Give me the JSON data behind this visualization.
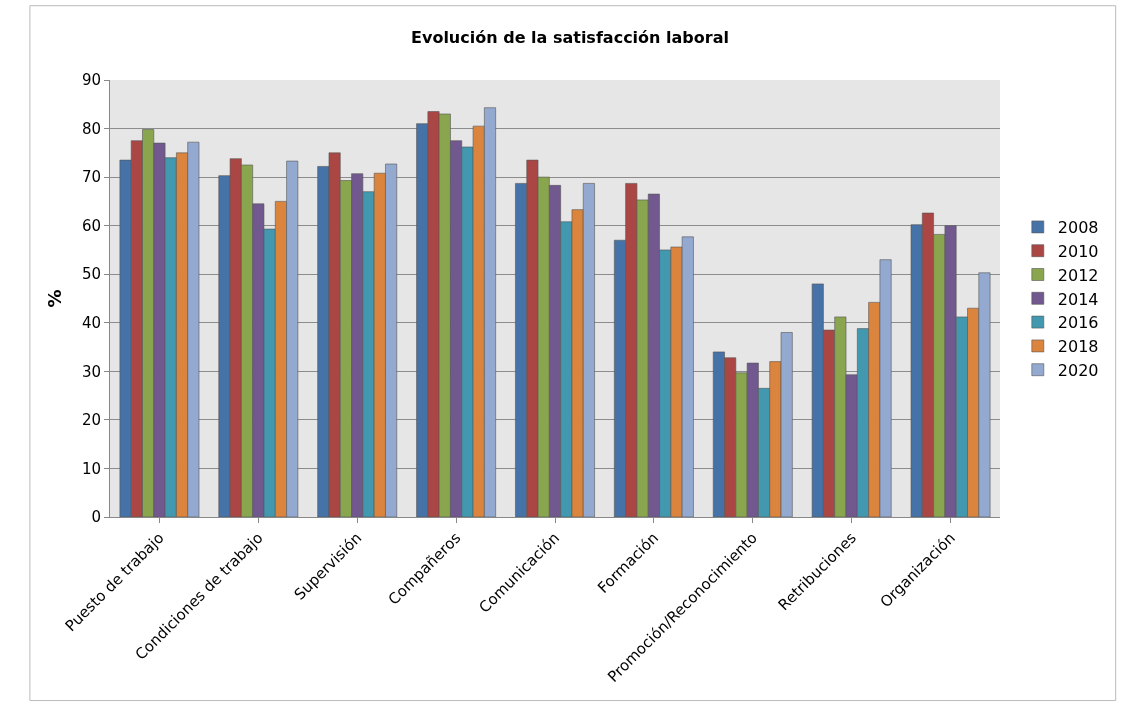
{
  "chart_data": {
    "type": "bar",
    "title": "Evolución de la satisfacción laboral",
    "ylabel": "%",
    "categories": [
      "Puesto de trabajo",
      "Condiciones de trabajo",
      "Supervisión",
      "Compañeros",
      "Comunicación",
      "Formación",
      "Promoción/Reconocimiento",
      "Retribuciones",
      "Organización"
    ],
    "series": [
      {
        "name": "2008",
        "color": "#4572a7",
        "values": [
          73.5,
          70.3,
          72.2,
          81,
          68.7,
          57,
          34,
          48,
          60.2
        ]
      },
      {
        "name": "2010",
        "color": "#aa4643",
        "values": [
          77.5,
          73.8,
          75,
          83.5,
          73.5,
          68.7,
          32.8,
          38.5,
          62.6
        ]
      },
      {
        "name": "2012",
        "color": "#89a54e",
        "values": [
          79.8,
          72.5,
          69.3,
          83,
          70,
          65.3,
          29.7,
          41.2,
          58.2
        ]
      },
      {
        "name": "2014",
        "color": "#71588f",
        "values": [
          77,
          64.5,
          70.7,
          77.5,
          68.3,
          66.5,
          31.7,
          29.3,
          60
        ]
      },
      {
        "name": "2016",
        "color": "#4198af",
        "values": [
          74,
          59.3,
          67,
          76.2,
          60.8,
          55,
          26.5,
          38.8,
          41.2
        ]
      },
      {
        "name": "2018",
        "color": "#db843d",
        "values": [
          75,
          65,
          70.8,
          80.5,
          63.3,
          55.6,
          32,
          44.2,
          43
        ]
      },
      {
        "name": "2020",
        "color": "#93a9cf",
        "values": [
          77.2,
          73.3,
          72.7,
          84.3,
          68.7,
          57.7,
          38,
          53,
          50.3
        ]
      }
    ],
    "ylim": [
      0,
      90
    ],
    "yticks": [
      0,
      10,
      20,
      30,
      40,
      50,
      60,
      70,
      80,
      90
    ],
    "grid": "y",
    "legend": "right"
  }
}
